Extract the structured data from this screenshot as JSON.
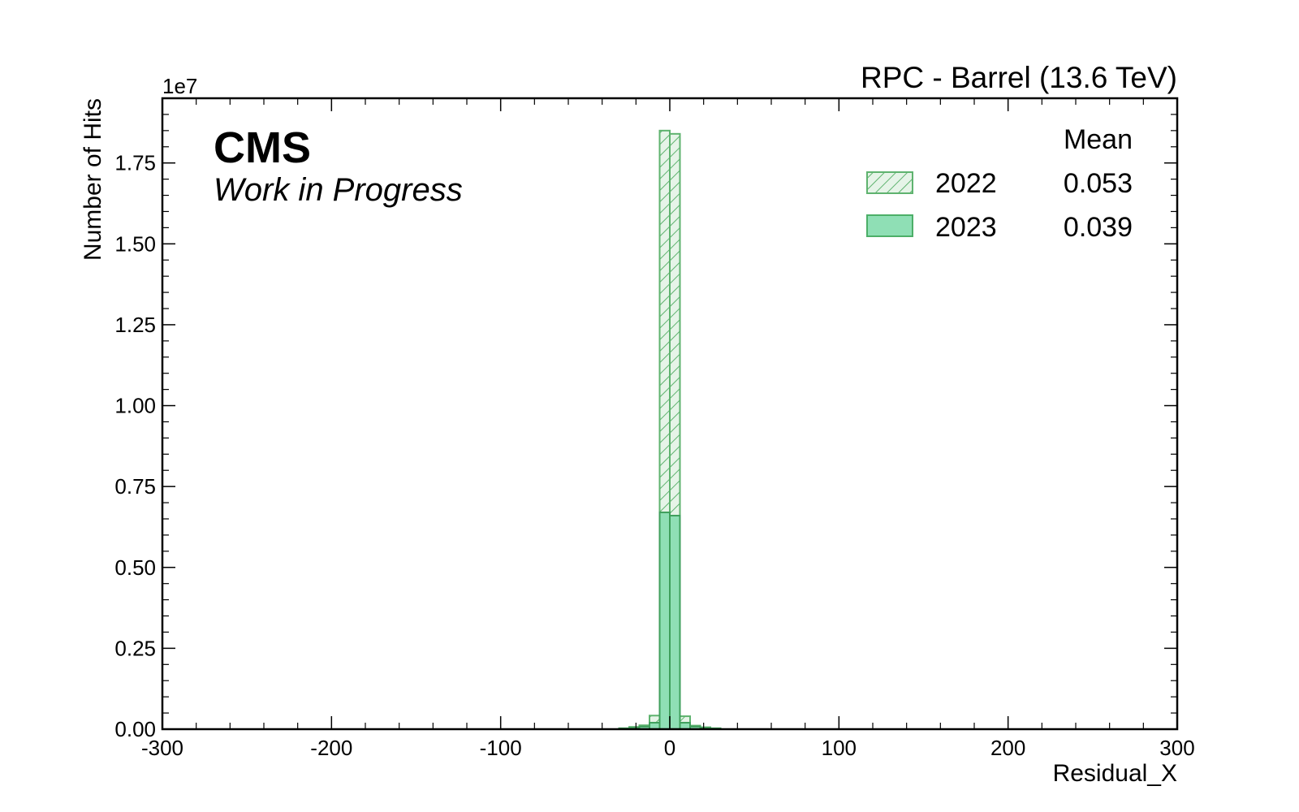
{
  "chart_data": {
    "type": "bar",
    "title": "RPC - Barrel (13.6 TeV)",
    "experiment": "CMS",
    "status": "Work in Progress",
    "xlabel": "Residual_X",
    "ylabel": "Number of Hits",
    "y_offset_label": "1e7",
    "xlim": [
      -300,
      300
    ],
    "ylim": [
      0,
      1.95
    ],
    "x_tick_labels": [
      "-300",
      "-200",
      "-100",
      "0",
      "100",
      "200",
      "300"
    ],
    "y_tick_labels": [
      "0.00",
      "0.25",
      "0.50",
      "0.75",
      "1.00",
      "1.25",
      "1.50",
      "1.75"
    ],
    "legend_header": "Mean",
    "legend_position": "top-right",
    "bin_edges": [
      -30,
      -24,
      -18,
      -12,
      -6,
      0,
      6,
      12,
      18,
      24,
      30
    ],
    "series": [
      {
        "name": "2022",
        "mean": "0.053",
        "style": "hatched",
        "color": "#5fb36f",
        "values": [
          0.003,
          0.007,
          0.012,
          0.042,
          1.85,
          1.84,
          0.04,
          0.011,
          0.006,
          0.003
        ]
      },
      {
        "name": "2023",
        "mean": "0.039",
        "style": "filled",
        "color": "#5cc98d",
        "values": [
          0.002,
          0.004,
          0.008,
          0.02,
          0.67,
          0.66,
          0.02,
          0.008,
          0.004,
          0.002
        ]
      }
    ]
  }
}
